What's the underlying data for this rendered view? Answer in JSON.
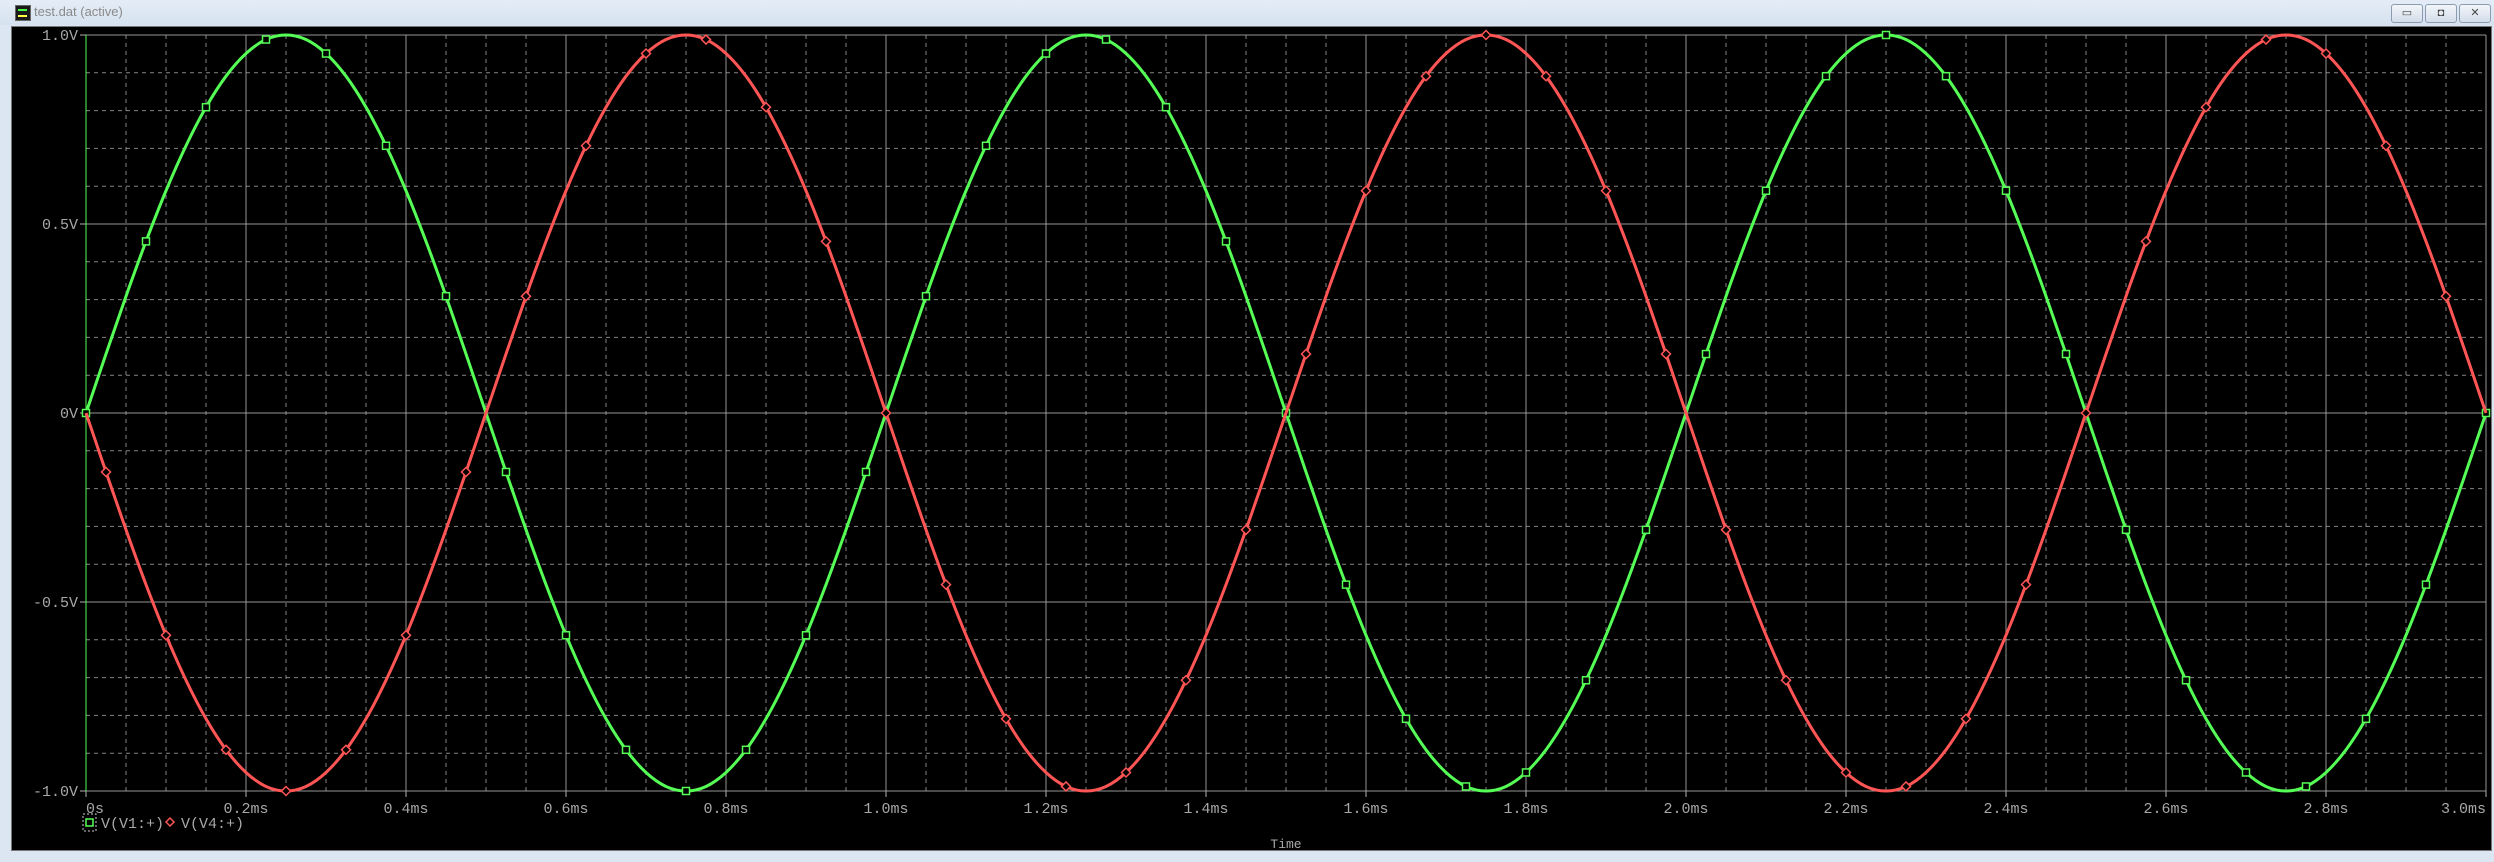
{
  "window": {
    "title": "test.dat (active)",
    "buttons": {
      "minimize": "▭",
      "restore": "◘",
      "close": "✕"
    }
  },
  "colors": {
    "background": "#000000",
    "grid": "#b0b0b0",
    "v1": "#55ff55",
    "v4": "#ff5555",
    "text": "#a8a8a8"
  },
  "chart_data": {
    "type": "line",
    "xlabel": "Time",
    "ylabel": "",
    "xlim_ms": [
      0,
      3.0
    ],
    "ylim_V": [
      -1.0,
      1.0
    ],
    "grid": true,
    "legend_placement": "bottom-left",
    "x_ticks": [
      "0s",
      "0.2ms",
      "0.4ms",
      "0.6ms",
      "0.8ms",
      "1.0ms",
      "1.2ms",
      "1.4ms",
      "1.6ms",
      "1.8ms",
      "2.0ms",
      "2.2ms",
      "2.4ms",
      "2.6ms",
      "2.8ms",
      "3.0ms"
    ],
    "y_ticks": [
      "1.0V",
      "0.5V",
      "0V",
      "-0.5V",
      "-1.0V"
    ],
    "y_tick_values": [
      1.0,
      0.5,
      0,
      -0.5,
      -1.0
    ],
    "x_step_ms": 0.025,
    "series": [
      {
        "name": "V(V1:+)",
        "marker": "square",
        "color": "#55ff55",
        "period_values": [
          0,
          0.156,
          0.309,
          0.454,
          0.588,
          0.707,
          0.809,
          0.891,
          0.951,
          0.988,
          1,
          0.988,
          0.951,
          0.891,
          0.809,
          0.707,
          0.588,
          0.454,
          0.309,
          0.156,
          0,
          -0.156,
          -0.309,
          -0.454,
          -0.588,
          -0.707,
          -0.809,
          -0.891,
          -0.951,
          -0.988,
          -1,
          -0.988,
          -0.951,
          -0.891,
          -0.809,
          -0.707,
          -0.588,
          -0.454,
          -0.309,
          -0.156
        ],
        "periods": 3,
        "period_ms": 1.0
      },
      {
        "name": "V(V4:+)",
        "marker": "diamond",
        "color": "#ff5555",
        "period_values": [
          0,
          -0.156,
          -0.309,
          -0.454,
          -0.588,
          -0.707,
          -0.809,
          -0.891,
          -0.951,
          -0.988,
          -1,
          -0.988,
          -0.951,
          -0.891,
          -0.809,
          -0.707,
          -0.588,
          -0.454,
          -0.309,
          -0.156,
          0,
          0.156,
          0.309,
          0.454,
          0.588,
          0.707,
          0.809,
          0.891,
          0.951,
          0.988,
          1,
          0.988,
          0.951,
          0.891,
          0.809,
          0.707,
          0.588,
          0.454,
          0.309,
          0.156
        ],
        "periods": 3,
        "period_ms": 1.0
      }
    ]
  }
}
